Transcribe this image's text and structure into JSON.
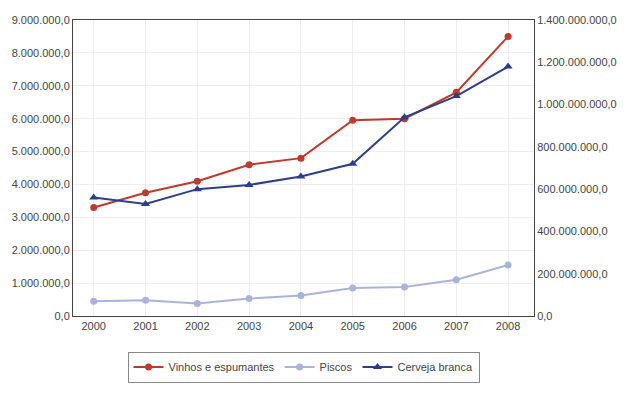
{
  "chart_data": {
    "type": "line",
    "x": [
      2000,
      2001,
      2002,
      2003,
      2004,
      2005,
      2006,
      2007,
      2008
    ],
    "xlim": [
      1999.6,
      2008.5
    ],
    "xticks": [
      2000,
      2001,
      2002,
      2003,
      2004,
      2005,
      2006,
      2007,
      2008
    ],
    "series": [
      {
        "name": "Vinhos e espumantes",
        "color": "#c0392b",
        "marker": "circle",
        "values": [
          3300000,
          3750000,
          4100000,
          4600000,
          4800000,
          5950000,
          6000000,
          6800000,
          8500000
        ]
      },
      {
        "name": "Piscos",
        "color": "#aab4d8",
        "marker": "circle",
        "values": [
          450000,
          480000,
          380000,
          530000,
          620000,
          850000,
          880000,
          1100000,
          1550000
        ]
      },
      {
        "name": "Cerveja branca",
        "color": "#2c3e8c",
        "marker": "triangle",
        "axis": "y2",
        "values": [
          560000000,
          530000000,
          600000000,
          620000000,
          660000000,
          720000000,
          940000000,
          1040000000,
          1180000000
        ]
      }
    ],
    "ylim": [
      0,
      9000000
    ],
    "yticks": [
      {
        "value": 0,
        "label": "0,0"
      },
      {
        "value": 1000000,
        "label": "1.000.000,0"
      },
      {
        "value": 2000000,
        "label": "2.000.000,0"
      },
      {
        "value": 3000000,
        "label": "3.000.000,0"
      },
      {
        "value": 4000000,
        "label": "4.000.000,0"
      },
      {
        "value": 5000000,
        "label": "5.000.000,0"
      },
      {
        "value": 6000000,
        "label": "6.000.000,0"
      },
      {
        "value": 7000000,
        "label": "7.000.000,0"
      },
      {
        "value": 8000000,
        "label": "8.000.000,0"
      },
      {
        "value": 9000000,
        "label": "9.000.000,0"
      }
    ],
    "y2lim": [
      0,
      1400000000
    ],
    "y2ticks": [
      {
        "value": 0,
        "label": "0,0"
      },
      {
        "value": 200000000,
        "label": "200.000.000,0"
      },
      {
        "value": 400000000,
        "label": "400.000.000,0"
      },
      {
        "value": 600000000,
        "label": "600.000.000,0"
      },
      {
        "value": 800000000,
        "label": "800.000.000,0"
      },
      {
        "value": 1000000000,
        "label": "1.000.000.000,0"
      },
      {
        "value": 1200000000,
        "label": "1.200.000.000,0"
      },
      {
        "value": 1400000000,
        "label": "1.400.000.000,0"
      }
    ],
    "grid": true,
    "legend": "bottom"
  }
}
